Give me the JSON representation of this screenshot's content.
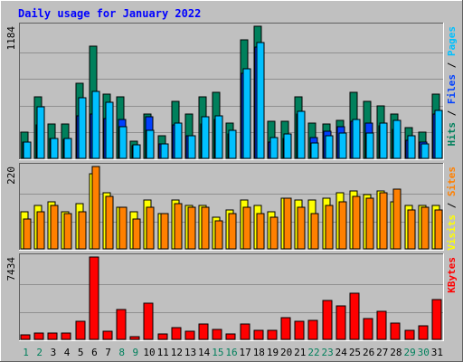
{
  "title": "Daily usage for January 2022",
  "colors": {
    "frame": "#c0c0c0",
    "background": "#c0c0c0",
    "title": "#0000ff",
    "hits": "#00805c",
    "files": "#0040ff",
    "pages": "#00c0ff",
    "visits": "#ffff00",
    "sites": "#ff8000",
    "kbytes": "#ff0000",
    "weekday_label": "#000000",
    "weekend_label": "#00805c"
  },
  "chart_data": [
    {
      "type": "bar",
      "panel": "hits-files-pages",
      "y_max_label": "1184",
      "ylim": [
        0,
        1184
      ],
      "right_labels": [
        {
          "text": "Hits",
          "color": "#00805c"
        },
        {
          "text": " / ",
          "color": "#000000"
        },
        {
          "text": "Files",
          "color": "#0040ff"
        },
        {
          "text": " / ",
          "color": "#000000"
        },
        {
          "text": "Pages",
          "color": "#00c0ff"
        }
      ],
      "categories": [
        "1",
        "2",
        "3",
        "4",
        "5",
        "6",
        "7",
        "8",
        "9",
        "10",
        "11",
        "12",
        "13",
        "14",
        "15",
        "16",
        "17",
        "18",
        "19",
        "20",
        "21",
        "22",
        "23",
        "24",
        "25",
        "26",
        "27",
        "28",
        "29",
        "30",
        "31"
      ],
      "series": [
        {
          "name": "Hits",
          "values": [
            237,
            553,
            308,
            308,
            671,
            1006,
            577,
            553,
            158,
            395,
            205,
            513,
            395,
            553,
            592,
            316,
            1066,
            1184,
            335,
            335,
            553,
            316,
            308,
            340,
            592,
            513,
            474,
            395,
            275,
            237,
            573
          ]
        },
        {
          "name": "Files",
          "values": [
            150,
            300,
            180,
            170,
            380,
            400,
            360,
            350,
            110,
            370,
            130,
            300,
            200,
            310,
            350,
            220,
            760,
            1000,
            150,
            180,
            400,
            190,
            240,
            280,
            330,
            320,
            290,
            260,
            160,
            150,
            400
          ]
        },
        {
          "name": "Pages",
          "values": [
            150,
            464,
            180,
            180,
            540,
            600,
            500,
            280,
            120,
            250,
            130,
            316,
            200,
            370,
            380,
            250,
            800,
            1040,
            190,
            220,
            420,
            140,
            200,
            230,
            350,
            230,
            316,
            340,
            200,
            130,
            430
          ]
        }
      ]
    },
    {
      "type": "bar",
      "panel": "visits-sites",
      "y_max_label": "220",
      "ylim": [
        0,
        220
      ],
      "right_labels": [
        {
          "text": "Visits",
          "color": "#ffff00"
        },
        {
          "text": " / ",
          "color": "#000000"
        },
        {
          "text": "Sites",
          "color": "#ff8000"
        }
      ],
      "categories": [
        "1",
        "2",
        "3",
        "4",
        "5",
        "6",
        "7",
        "8",
        "9",
        "10",
        "11",
        "12",
        "13",
        "14",
        "15",
        "16",
        "17",
        "18",
        "19",
        "20",
        "21",
        "22",
        "23",
        "24",
        "25",
        "26",
        "27",
        "28",
        "29",
        "30",
        "31"
      ],
      "series": [
        {
          "name": "Visits",
          "values": [
            100,
            115,
            125,
            100,
            120,
            200,
            150,
            110,
            100,
            130,
            95,
            130,
            115,
            115,
            85,
            105,
            130,
            115,
            100,
            135,
            130,
            130,
            135,
            150,
            155,
            145,
            155,
            125,
            115,
            115,
            115
          ]
        },
        {
          "name": "Sites",
          "values": [
            80,
            100,
            115,
            95,
            100,
            220,
            140,
            110,
            80,
            110,
            95,
            120,
            110,
            110,
            75,
            95,
            110,
            95,
            85,
            135,
            110,
            95,
            115,
            125,
            140,
            135,
            150,
            160,
            105,
            110,
            105
          ]
        }
      ]
    },
    {
      "type": "bar",
      "panel": "kbytes",
      "y_max_label": "7434",
      "ylim": [
        0,
        7434
      ],
      "right_labels": [
        {
          "text": "KBytes",
          "color": "#ff0000"
        }
      ],
      "categories": [
        "1",
        "2",
        "3",
        "4",
        "5",
        "6",
        "7",
        "8",
        "9",
        "10",
        "11",
        "12",
        "13",
        "14",
        "15",
        "16",
        "17",
        "18",
        "19",
        "20",
        "21",
        "22",
        "23",
        "24",
        "25",
        "26",
        "27",
        "28",
        "29",
        "30",
        "31"
      ],
      "series": [
        {
          "name": "KBytes",
          "values": [
            400,
            600,
            600,
            600,
            1600,
            7434,
            700,
            2700,
            250,
            3300,
            500,
            1100,
            700,
            1400,
            900,
            500,
            1400,
            800,
            800,
            2000,
            1600,
            1700,
            3500,
            3000,
            4200,
            1900,
            2500,
            1500,
            800,
            1200,
            3600
          ]
        }
      ]
    }
  ]
}
